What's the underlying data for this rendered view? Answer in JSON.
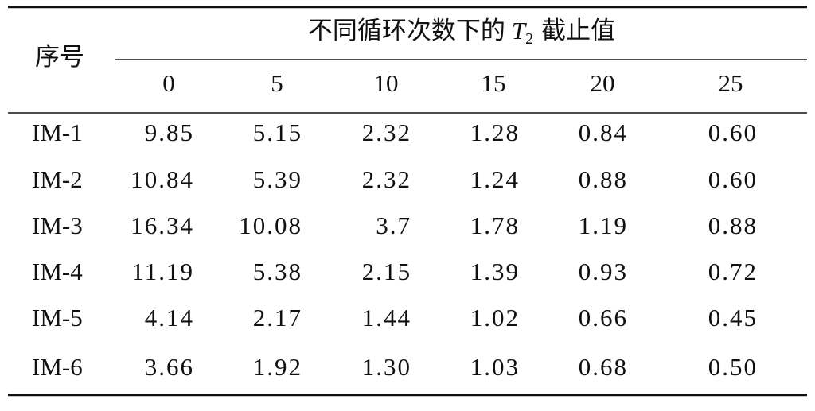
{
  "table": {
    "header": {
      "row_label": "序号",
      "group_title": {
        "prefix": "不同循环次数下的",
        "symbol": "T",
        "subscript": "2",
        "suffix": "截止值"
      },
      "columns": [
        "0",
        "5",
        "10",
        "15",
        "20",
        "25"
      ]
    },
    "rows": [
      {
        "label": "IM-1",
        "values": [
          "9.85",
          "5.15",
          "2.32",
          "1.28",
          "0.84",
          "0.60"
        ]
      },
      {
        "label": "IM-2",
        "values": [
          "10.84",
          "5.39",
          "2.32",
          "1.24",
          "0.88",
          "0.60"
        ]
      },
      {
        "label": "IM-3",
        "values": [
          "16.34",
          "10.08",
          "3.7",
          "1.78",
          "1.19",
          "0.88"
        ]
      },
      {
        "label": "IM-4",
        "values": [
          "11.19",
          "5.38",
          "2.15",
          "1.39",
          "0.93",
          "0.72"
        ]
      },
      {
        "label": "IM-5",
        "values": [
          "4.14",
          "2.17",
          "1.44",
          "1.02",
          "0.66",
          "0.45"
        ]
      },
      {
        "label": "IM-6",
        "values": [
          "3.66",
          "1.92",
          "1.30",
          "1.03",
          "0.68",
          "0.50"
        ]
      }
    ]
  }
}
